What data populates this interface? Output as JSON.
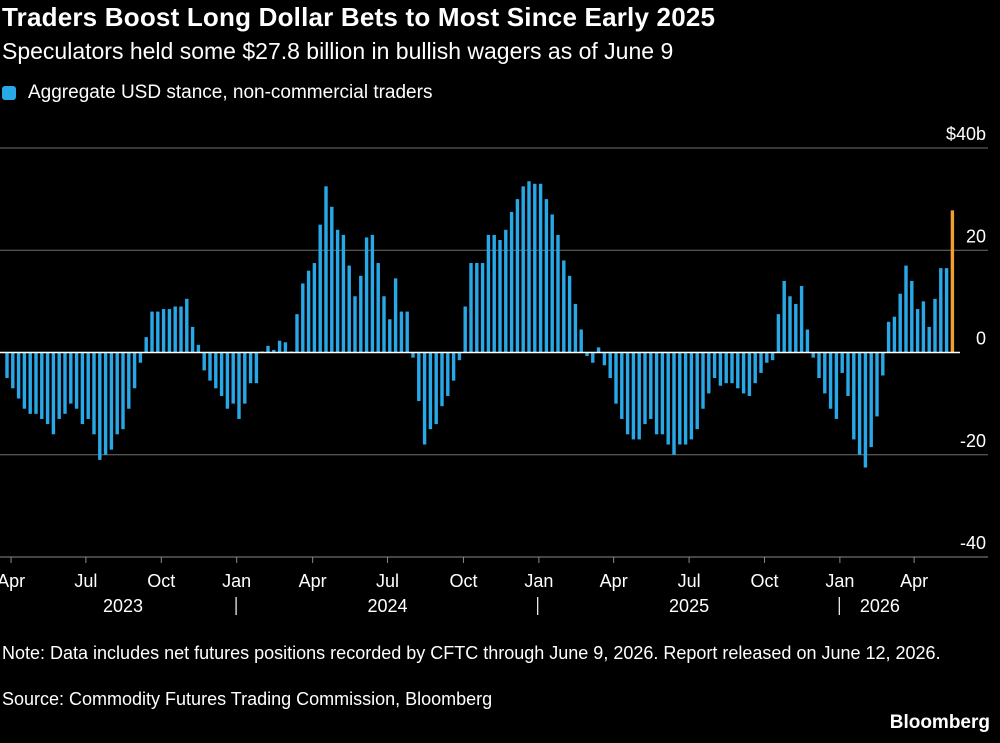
{
  "title": "Traders Boost Long Dollar Bets to Most Since Early 2025",
  "subtitle": "Speculators held some $27.8 billion in bullish wagers as of June 9",
  "legend": {
    "label": "Aggregate USD stance, non-commercial traders",
    "color": "#29a8e8"
  },
  "highlight_color": "#f0a030",
  "note": "Note: Data includes net futures positions recorded by CFTC through June 9, 2026. Report released on June 12, 2026.",
  "source": "Source: Commodity Futures Trading Commission, Bloomberg",
  "brand": "Bloomberg",
  "chart_data": {
    "type": "bar",
    "series": [
      {
        "name": "Aggregate USD stance, non-commercial traders",
        "values": [
          -5,
          -7,
          -9,
          -11,
          -12,
          -12,
          -13,
          -14,
          -16,
          -13,
          -12,
          -10,
          -11,
          -14,
          -13,
          -16,
          -21,
          -20,
          -19,
          -16,
          -15,
          -11,
          -7,
          -2,
          3,
          8,
          8,
          8.5,
          8.5,
          9,
          9,
          10.5,
          5,
          1.5,
          -3.5,
          -5.5,
          -7,
          -8.5,
          -11,
          -10,
          -13,
          -10,
          -6,
          -6,
          0.2,
          1.3,
          0.5,
          2.3,
          2,
          0.2,
          7.5,
          13.5,
          16,
          17.5,
          25,
          32.5,
          28.5,
          24,
          23,
          17,
          11,
          15,
          22.5,
          23,
          17.5,
          11,
          6.5,
          14.5,
          8,
          8,
          -1,
          -9.5,
          -18,
          -15,
          -14,
          -10.5,
          -8.5,
          -5.5,
          -1.5,
          9,
          17.5,
          17.5,
          17.5,
          23,
          23,
          22,
          24,
          27.5,
          30,
          32.5,
          33.5,
          33,
          33,
          30,
          27,
          23,
          18,
          15,
          9.5,
          4.5,
          -0.7,
          -2,
          1,
          -2.5,
          -5,
          -10,
          -13,
          -16,
          -17,
          -17,
          -14,
          -13,
          -16,
          -16,
          -18,
          -20,
          -18,
          -18,
          -17,
          -15,
          -11,
          -8,
          -5,
          -6.5,
          -6,
          -6,
          -7,
          -8,
          -8.5,
          -6,
          -4,
          -2,
          -1.5,
          7.5,
          14,
          11,
          9.5,
          13,
          4.5,
          -1,
          -5,
          -8,
          -11,
          -13,
          -4,
          -8.5,
          -17,
          -20,
          -22.5,
          -18.5,
          -12.5,
          -4.5,
          6,
          7,
          11.5,
          17,
          14,
          8.5,
          10,
          5,
          10.5,
          16.5,
          16.5
        ],
        "highlight_value": 27.8,
        "highlight_label": "June 9, 2026"
      }
    ],
    "x_ticks": [
      "Apr",
      "Jul",
      "Oct",
      "Jan",
      "Apr",
      "Jul",
      "Oct",
      "Jan",
      "Apr",
      "Jul",
      "Oct",
      "Jan",
      "Apr"
    ],
    "x_tick_positions": [
      0.7,
      13.6,
      26.6,
      39.6,
      52.7,
      65.6,
      78.7,
      91.7,
      104.6,
      117.6,
      130.6,
      143.6,
      156.4
    ],
    "years": [
      "2023",
      "2024",
      "2025",
      "2026"
    ],
    "year_positions": [
      20,
      65.6,
      117.6,
      150.5
    ],
    "year_separators": [
      39.5,
      91.5,
      143.5
    ],
    "y_ticks": [
      "$40b",
      "20",
      "0",
      "-20",
      "-40"
    ],
    "y_tick_values": [
      40,
      20,
      0,
      -20,
      -40
    ],
    "ylim": [
      -40,
      40
    ],
    "grid": true
  }
}
